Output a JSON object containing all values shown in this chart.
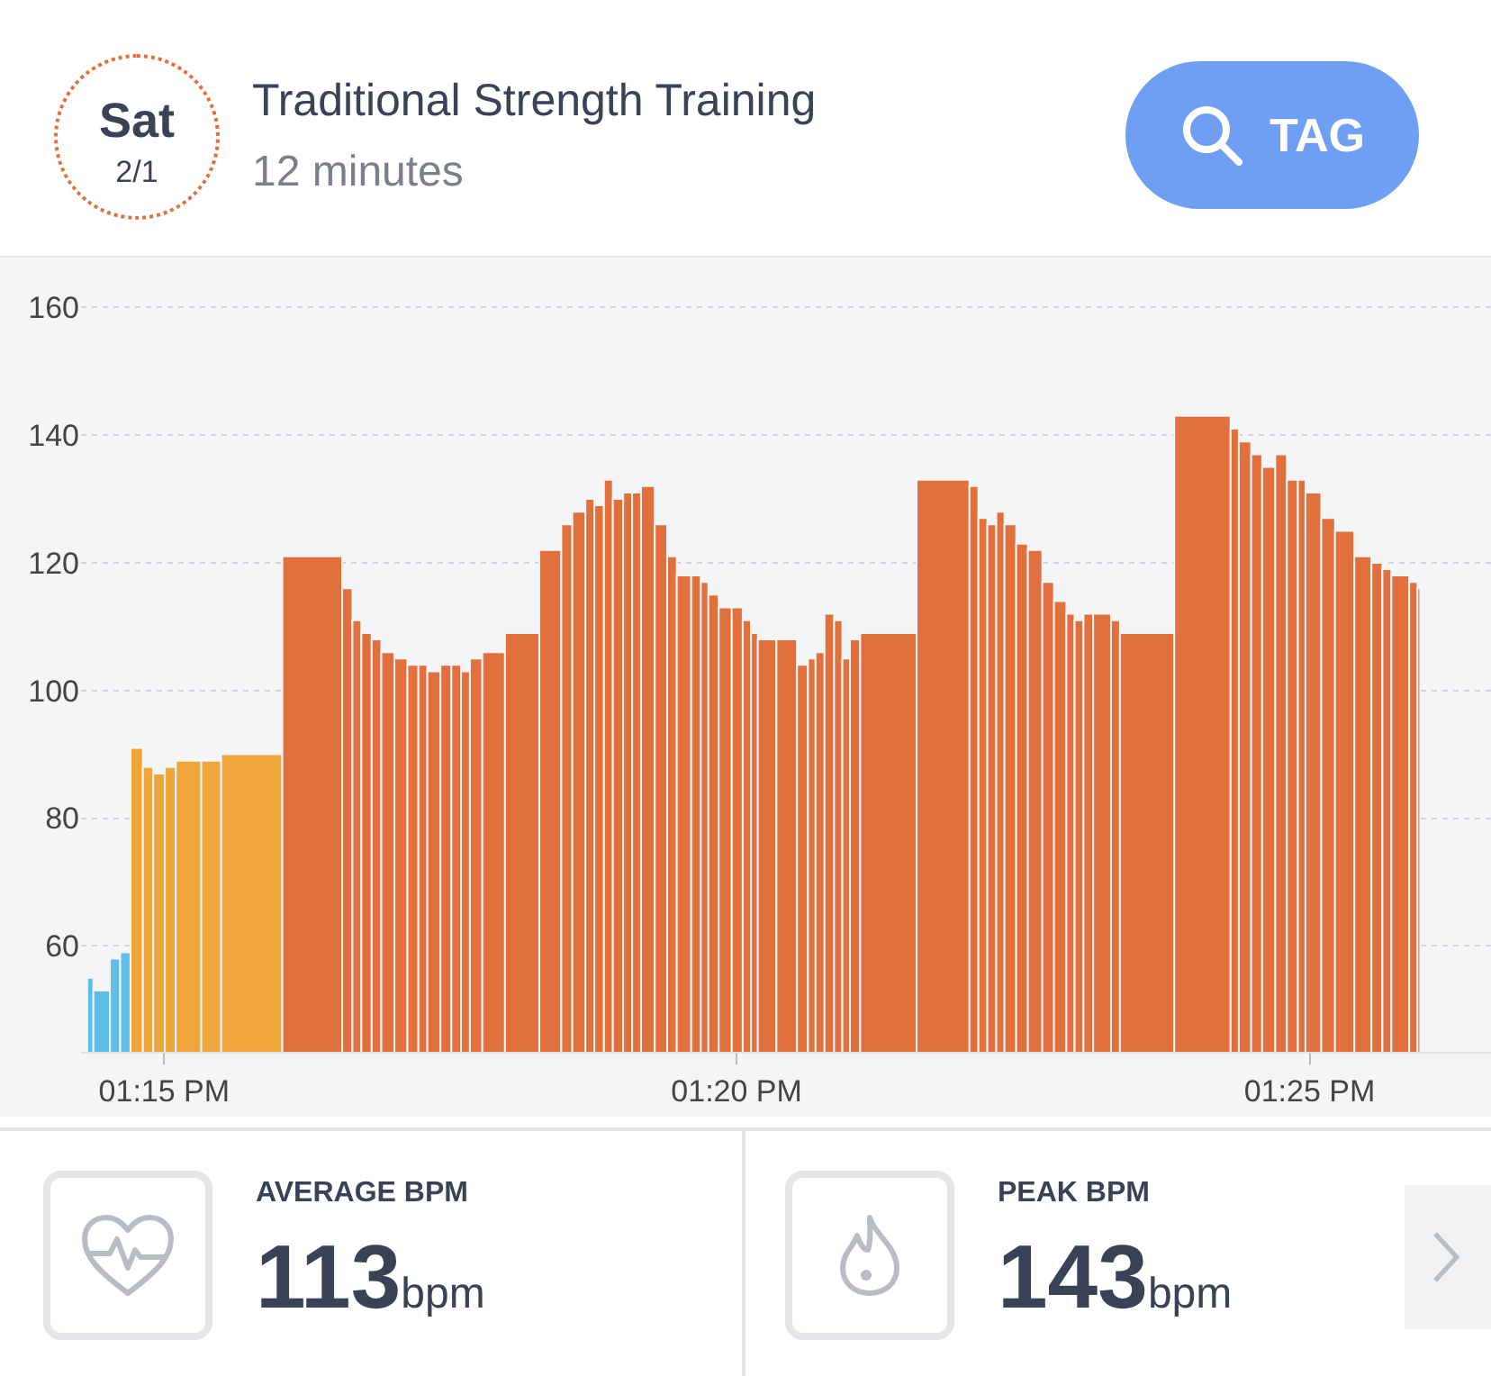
{
  "chart_data": {
    "type": "histogram",
    "title": "Traditional Strength Training",
    "subtitle": "12 minutes",
    "annotations": [
      "Sat",
      "2/1",
      "TAG",
      "AVERAGE BPM",
      "113",
      "bpm",
      "PEAK BPM",
      "143",
      "bpm"
    ],
    "bins": [
      13.2388,
      13.2397,
      13.2421,
      13.2436,
      13.2451,
      13.2469,
      13.2484,
      13.2501,
      13.2517,
      13.2554,
      13.2583,
      13.2672,
      13.2759,
      13.2774,
      13.2787,
      13.2802,
      13.2816,
      13.2835,
      13.2854,
      13.287,
      13.2883,
      13.2902,
      13.2918,
      13.2932,
      13.2945,
      13.2963,
      13.2996,
      13.3046,
      13.3078,
      13.3094,
      13.3113,
      13.3126,
      13.314,
      13.3153,
      13.3168,
      13.3181,
      13.3194,
      13.3214,
      13.3232,
      13.3246,
      13.3267,
      13.3281,
      13.3292,
      13.3307,
      13.3326,
      13.3342,
      13.3354,
      13.3364,
      13.3391,
      13.3421,
      13.3437,
      13.3448,
      13.3461,
      13.3475,
      13.3487,
      13.3498,
      13.3513,
      13.3595,
      13.3672,
      13.3685,
      13.3698,
      13.3711,
      13.3723,
      13.374,
      13.3757,
      13.3778,
      13.3795,
      13.3813,
      13.3825,
      13.3838,
      13.3852,
      13.3878,
      13.3891,
      13.397,
      13.4052,
      13.4064,
      13.4082,
      13.4098,
      13.4117,
      13.4134,
      13.415,
      13.4161,
      13.4184,
      13.4204,
      13.4232,
      13.4257,
      13.4273,
      13.4286,
      13.4312,
      13.4324,
      13.4328
    ],
    "values": [
      55,
      53,
      58,
      59,
      91,
      88,
      87,
      88,
      89,
      89,
      90,
      121,
      116,
      111,
      109,
      108,
      106,
      105,
      104,
      104,
      103,
      104,
      104,
      103,
      105,
      106,
      109,
      122,
      126,
      128,
      130,
      129,
      133,
      130,
      131,
      131,
      132,
      126,
      121,
      118,
      118,
      117,
      115,
      113,
      113,
      111,
      109,
      108,
      108,
      104,
      105,
      106,
      112,
      111,
      105,
      108,
      109,
      133,
      132,
      127,
      126,
      128,
      126,
      123,
      122,
      117,
      114,
      112,
      111,
      112,
      112,
      111,
      109,
      143,
      141,
      139,
      137,
      135,
      137,
      133,
      133,
      131,
      127,
      125,
      121,
      120,
      119,
      118,
      117,
      116
    ],
    "colors": [
      "#5bbfea",
      "#5bbfea",
      "#5bbfea",
      "#5bbfea",
      "#f0a53b",
      "#f0a53b",
      "#f0a53b",
      "#f0a53b",
      "#f0a53b",
      "#f0a53b",
      "#f0a53b",
      "#e2703d",
      "#e2703d",
      "#e2703d",
      "#e2703d",
      "#e2703d",
      "#e2703d",
      "#e2703d",
      "#e2703d",
      "#e2703d",
      "#e2703d",
      "#e2703d",
      "#e2703d",
      "#e2703d",
      "#e2703d",
      "#e2703d",
      "#e2703d",
      "#e2703d",
      "#e2703d",
      "#e2703d",
      "#e2703d",
      "#e2703d",
      "#e2703d",
      "#e2703d",
      "#e2703d",
      "#e2703d",
      "#e2703d",
      "#e2703d",
      "#e2703d",
      "#e2703d",
      "#e2703d",
      "#e2703d",
      "#e2703d",
      "#e2703d",
      "#e2703d",
      "#e2703d",
      "#e2703d",
      "#e2703d",
      "#e2703d",
      "#e2703d",
      "#e2703d",
      "#e2703d",
      "#e2703d",
      "#e2703d",
      "#e2703d",
      "#e2703d",
      "#e2703d",
      "#e2703d",
      "#e2703d",
      "#e2703d",
      "#e2703d",
      "#e2703d",
      "#e2703d",
      "#e2703d",
      "#e2703d",
      "#e2703d",
      "#e2703d",
      "#e2703d",
      "#e2703d",
      "#e2703d",
      "#e2703d",
      "#e2703d",
      "#e2703d",
      "#e2703d",
      "#e2703d",
      "#e2703d",
      "#e2703d",
      "#e2703d",
      "#e2703d",
      "#e2703d",
      "#e2703d",
      "#e2703d",
      "#e2703d",
      "#e2703d",
      "#e2703d",
      "#e2703d",
      "#e2703d",
      "#e2703d",
      "#e2703d",
      "#e2703d"
    ],
    "xlim": [
      13.2379,
      13.4431
    ],
    "xticks": [
      {
        "value": 13.25,
        "label": "01:15 PM"
      },
      {
        "value": 13.3333,
        "label": "01:20 PM"
      },
      {
        "value": 13.4167,
        "label": "01:25 PM"
      }
    ],
    "ylim": [
      43.4,
      167.8
    ],
    "yticks": [
      60,
      80,
      100,
      120,
      140,
      160
    ],
    "grid": "y"
  }
}
